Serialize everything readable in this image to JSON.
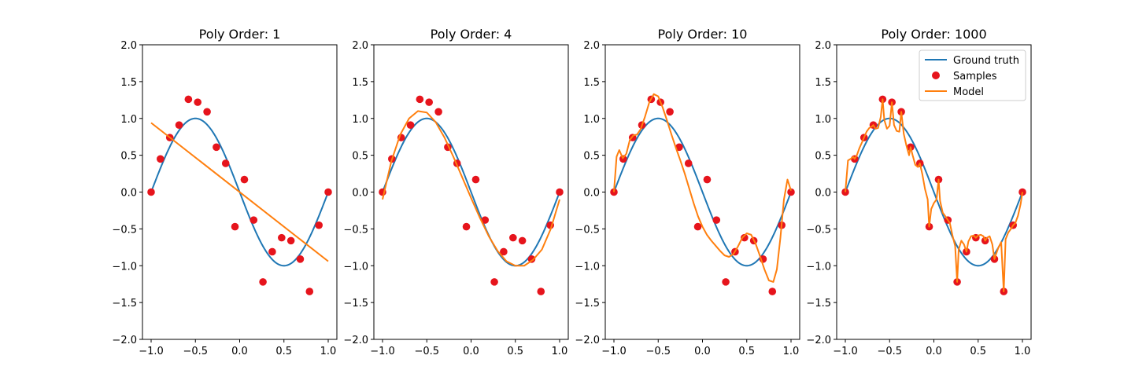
{
  "colors": {
    "ground_truth": "#1f77b4",
    "samples": "#e6141c",
    "model": "#ff7f0e",
    "axes": "#000000"
  },
  "legend": {
    "placement": "top-right",
    "entries": [
      "Ground truth",
      "Samples",
      "Model"
    ]
  },
  "chart_data": [
    {
      "type": "line",
      "title": "Poly Order: 1",
      "xlim": [
        -1.0,
        1.0
      ],
      "ylim": [
        -2.0,
        2.0
      ],
      "x_ticks": [
        "−1.0",
        "−0.5",
        "0.0",
        "0.5",
        "1.0"
      ],
      "y_ticks": [
        "−2.0",
        "−1.5",
        "−1.0",
        "−0.5",
        "0.0",
        "0.5",
        "1.0",
        "1.5",
        "2.0"
      ],
      "grid": false,
      "legend": false,
      "series": [
        {
          "name": "Ground truth",
          "kind": "line",
          "function": "sin(pi*(x+1))"
        },
        {
          "name": "Samples",
          "kind": "scatter",
          "x": [
            -1.0,
            -0.895,
            -0.789,
            -0.684,
            -0.579,
            -0.474,
            -0.368,
            -0.263,
            -0.158,
            -0.053,
            0.053,
            0.158,
            0.263,
            0.368,
            0.474,
            0.579,
            0.684,
            0.789,
            0.895,
            1.0
          ],
          "y": [
            0.0,
            0.45,
            0.74,
            0.91,
            1.26,
            1.22,
            1.09,
            0.61,
            0.39,
            -0.47,
            0.17,
            -0.38,
            -1.22,
            -0.81,
            -0.62,
            -0.66,
            -0.91,
            -1.35,
            -0.45,
            0.0
          ]
        },
        {
          "name": "Model",
          "kind": "line",
          "x": [
            -1.0,
            1.0
          ],
          "y": [
            0.94,
            -0.94
          ]
        }
      ]
    },
    {
      "type": "line",
      "title": "Poly Order: 4",
      "xlim": [
        -1.0,
        1.0
      ],
      "ylim": [
        -2.0,
        2.0
      ],
      "x_ticks": [
        "−1.0",
        "−0.5",
        "0.0",
        "0.5",
        "1.0"
      ],
      "y_ticks": [
        "−2.0",
        "−1.5",
        "−1.0",
        "−0.5",
        "0.0",
        "0.5",
        "1.0",
        "1.5",
        "2.0"
      ],
      "grid": false,
      "legend": false,
      "series": [
        {
          "name": "Ground truth",
          "kind": "line",
          "function": "sin(pi*(x+1))"
        },
        {
          "name": "Samples",
          "kind": "scatter",
          "x": [
            -1.0,
            -0.895,
            -0.789,
            -0.684,
            -0.579,
            -0.474,
            -0.368,
            -0.263,
            -0.158,
            -0.053,
            0.053,
            0.158,
            0.263,
            0.368,
            0.474,
            0.579,
            0.684,
            0.789,
            0.895,
            1.0
          ],
          "y": [
            0.0,
            0.45,
            0.74,
            0.91,
            1.26,
            1.22,
            1.09,
            0.61,
            0.39,
            -0.47,
            0.17,
            -0.38,
            -1.22,
            -0.81,
            -0.62,
            -0.66,
            -0.91,
            -1.35,
            -0.45,
            0.0
          ]
        },
        {
          "name": "Model",
          "kind": "line",
          "x": [
            -1.0,
            -0.9,
            -0.8,
            -0.7,
            -0.6,
            -0.5,
            -0.4,
            -0.3,
            -0.2,
            -0.1,
            0.0,
            0.1,
            0.2,
            0.3,
            0.4,
            0.5,
            0.6,
            0.7,
            0.8,
            0.9,
            1.0
          ],
          "y": [
            -0.1,
            0.42,
            0.78,
            1.0,
            1.1,
            1.08,
            0.95,
            0.74,
            0.48,
            0.2,
            -0.08,
            -0.35,
            -0.6,
            -0.8,
            -0.94,
            -1.0,
            -1.0,
            -0.92,
            -0.78,
            -0.5,
            -0.1
          ]
        }
      ]
    },
    {
      "type": "line",
      "title": "Poly Order: 10",
      "xlim": [
        -1.0,
        1.0
      ],
      "ylim": [
        -2.0,
        2.0
      ],
      "x_ticks": [
        "−1.0",
        "−0.5",
        "0.0",
        "0.5",
        "1.0"
      ],
      "y_ticks": [
        "−2.0",
        "−1.5",
        "−1.0",
        "−0.5",
        "0.0",
        "0.5",
        "1.0",
        "1.5",
        "2.0"
      ],
      "grid": false,
      "legend": false,
      "series": [
        {
          "name": "Ground truth",
          "kind": "line",
          "function": "sin(pi*(x+1))"
        },
        {
          "name": "Samples",
          "kind": "scatter",
          "x": [
            -1.0,
            -0.895,
            -0.789,
            -0.684,
            -0.579,
            -0.474,
            -0.368,
            -0.263,
            -0.158,
            -0.053,
            0.053,
            0.158,
            0.263,
            0.368,
            0.474,
            0.579,
            0.684,
            0.789,
            0.895,
            1.0
          ],
          "y": [
            0.0,
            0.45,
            0.74,
            0.91,
            1.26,
            1.22,
            1.09,
            0.61,
            0.39,
            -0.47,
            0.17,
            -0.38,
            -1.22,
            -0.81,
            -0.62,
            -0.66,
            -0.91,
            -1.35,
            -0.45,
            0.0
          ]
        },
        {
          "name": "Model",
          "kind": "line",
          "x": [
            -1.0,
            -0.97,
            -0.94,
            -0.9,
            -0.86,
            -0.82,
            -0.78,
            -0.74,
            -0.7,
            -0.65,
            -0.6,
            -0.55,
            -0.5,
            -0.45,
            -0.4,
            -0.35,
            -0.3,
            -0.25,
            -0.2,
            -0.15,
            -0.1,
            -0.05,
            0.0,
            0.05,
            0.1,
            0.15,
            0.2,
            0.25,
            0.3,
            0.35,
            0.4,
            0.45,
            0.5,
            0.55,
            0.6,
            0.65,
            0.7,
            0.75,
            0.8,
            0.84,
            0.88,
            0.92,
            0.96,
            1.0
          ],
          "y": [
            0.0,
            0.48,
            0.57,
            0.46,
            0.52,
            0.71,
            0.77,
            0.78,
            0.85,
            1.02,
            1.22,
            1.33,
            1.3,
            1.15,
            0.97,
            0.78,
            0.6,
            0.43,
            0.25,
            0.05,
            -0.15,
            -0.33,
            -0.47,
            -0.58,
            -0.66,
            -0.73,
            -0.8,
            -0.86,
            -0.88,
            -0.84,
            -0.74,
            -0.62,
            -0.56,
            -0.58,
            -0.7,
            -0.87,
            -1.05,
            -1.2,
            -1.22,
            -1.05,
            -0.62,
            -0.1,
            0.17,
            0.02
          ]
        }
      ]
    },
    {
      "type": "line",
      "title": "Poly Order: 1000",
      "xlim": [
        -1.0,
        1.0
      ],
      "ylim": [
        -2.0,
        2.0
      ],
      "x_ticks": [
        "−1.0",
        "−0.5",
        "0.0",
        "0.5",
        "1.0"
      ],
      "y_ticks": [
        "−2.0",
        "−1.5",
        "−1.0",
        "−0.5",
        "0.0",
        "0.5",
        "1.0",
        "1.5",
        "2.0"
      ],
      "grid": false,
      "legend": true,
      "series": [
        {
          "name": "Ground truth",
          "kind": "line",
          "function": "sin(pi*(x+1))"
        },
        {
          "name": "Samples",
          "kind": "scatter",
          "x": [
            -1.0,
            -0.895,
            -0.789,
            -0.684,
            -0.579,
            -0.474,
            -0.368,
            -0.263,
            -0.158,
            -0.053,
            0.053,
            0.158,
            0.263,
            0.368,
            0.474,
            0.579,
            0.684,
            0.789,
            0.895,
            1.0
          ],
          "y": [
            0.0,
            0.45,
            0.74,
            0.91,
            1.26,
            1.22,
            1.09,
            0.61,
            0.39,
            -0.47,
            0.17,
            -0.38,
            -1.22,
            -0.81,
            -0.62,
            -0.66,
            -0.91,
            -1.35,
            -0.45,
            0.0
          ]
        },
        {
          "name": "Model",
          "kind": "line",
          "x": [
            -1.0,
            -0.97,
            -0.94,
            -0.91,
            -0.895,
            -0.87,
            -0.84,
            -0.81,
            -0.789,
            -0.76,
            -0.73,
            -0.7,
            -0.684,
            -0.66,
            -0.63,
            -0.6,
            -0.579,
            -0.56,
            -0.53,
            -0.5,
            -0.474,
            -0.45,
            -0.42,
            -0.39,
            -0.368,
            -0.34,
            -0.31,
            -0.28,
            -0.263,
            -0.24,
            -0.21,
            -0.18,
            -0.158,
            -0.13,
            -0.1,
            -0.07,
            -0.053,
            -0.03,
            0.0,
            0.03,
            0.053,
            0.07,
            0.1,
            0.13,
            0.158,
            0.18,
            0.21,
            0.24,
            0.263,
            0.28,
            0.31,
            0.34,
            0.368,
            0.39,
            0.42,
            0.45,
            0.474,
            0.5,
            0.53,
            0.56,
            0.579,
            0.6,
            0.63,
            0.66,
            0.684,
            0.7,
            0.73,
            0.76,
            0.789,
            0.81,
            0.84,
            0.87,
            0.895,
            0.92,
            0.95,
            0.98,
            1.0
          ],
          "y": [
            0.0,
            0.43,
            0.45,
            0.48,
            0.45,
            0.5,
            0.6,
            0.68,
            0.74,
            0.82,
            0.87,
            0.89,
            0.91,
            0.86,
            0.87,
            1.02,
            1.26,
            0.98,
            0.86,
            0.9,
            1.22,
            0.91,
            0.83,
            0.82,
            1.09,
            0.79,
            0.63,
            0.5,
            0.61,
            0.5,
            0.37,
            0.34,
            0.39,
            0.24,
            0.04,
            -0.1,
            -0.47,
            -0.23,
            -0.15,
            -0.1,
            0.17,
            -0.12,
            -0.28,
            -0.33,
            -0.38,
            -0.42,
            -0.59,
            -0.73,
            -1.22,
            -0.78,
            -0.66,
            -0.71,
            -0.81,
            -0.67,
            -0.6,
            -0.59,
            -0.62,
            -0.59,
            -0.58,
            -0.6,
            -0.66,
            -0.62,
            -0.6,
            -0.71,
            -0.91,
            -0.85,
            -0.75,
            -0.68,
            -1.35,
            -0.64,
            -0.55,
            -0.5,
            -0.45,
            -0.42,
            -0.32,
            -0.16,
            0.0
          ]
        }
      ]
    }
  ]
}
